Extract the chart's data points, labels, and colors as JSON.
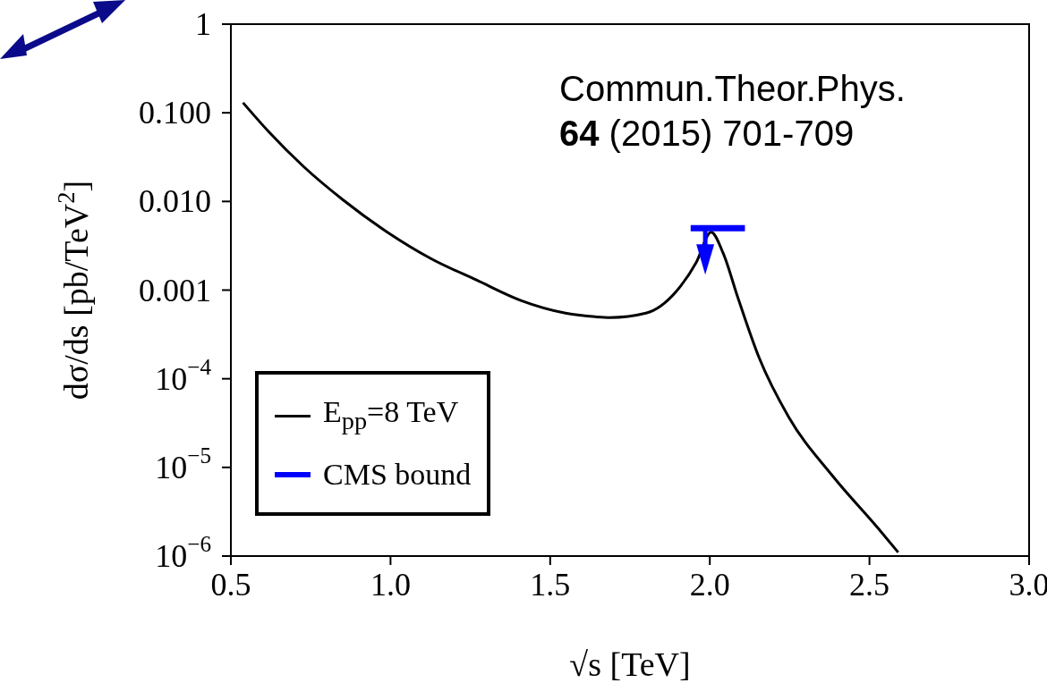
{
  "chart_data": {
    "type": "line",
    "xlabel": "√s [TeV]",
    "ylabel": "dσ/ds [pb/TeV$^{2}$]",
    "log": "y",
    "xlim": [
      0.5,
      3.0
    ],
    "xticks": [
      0.5,
      {
        "value": 1.0,
        "label": "1.0"
      },
      1.5,
      {
        "value": 2.0,
        "label": "2.0"
      },
      2.5,
      {
        "value": 3.0,
        "label": "3.0"
      }
    ],
    "ylim": [
      1e-06,
      1
    ],
    "yticks": [
      {
        "value": 1e-06,
        "label": "10$^{−6}$"
      },
      {
        "value": 1e-05,
        "label": "10$^{−5}$"
      },
      {
        "value": 0.0001,
        "label": "10$^{−4}$"
      },
      0.001,
      {
        "value": 0.01,
        "label": "0.010"
      },
      {
        "value": 0.1,
        "label": "0.100"
      },
      1
    ],
    "grid": false,
    "legend": "bottom left",
    "annotations": [
      "Commun.Theor.Phys.",
      "64 (2015) 701-709"
    ],
    "series": [
      {
        "name": "E$_{pp}$=8 TeV",
        "color": "#000000",
        "x": [
          0.538,
          0.617,
          0.729,
          0.85,
          0.99,
          1.129,
          1.269,
          1.41,
          1.548,
          1.641,
          1.688,
          1.8,
          1.893,
          1.958,
          2.004,
          2.042,
          2.088,
          2.154,
          2.247,
          2.386,
          2.525,
          2.59
        ],
        "values": [
          0.13,
          0.062,
          0.0245,
          0.0105,
          0.0045,
          0.00224,
          0.0013,
          0.00076,
          0.00055,
          0.0005,
          0.00049,
          0.00055,
          0.00095,
          0.00207,
          0.0045,
          0.0026,
          0.00082,
          0.000174,
          3.7e-05,
          7.9e-06,
          2.1e-06,
          1.1e-06
        ]
      },
      {
        "name": "CMS bound",
        "color": "#0000ff",
        "x": [
          1.94,
          2.11
        ],
        "values": [
          0.005,
          0.005
        ]
      }
    ]
  }
}
